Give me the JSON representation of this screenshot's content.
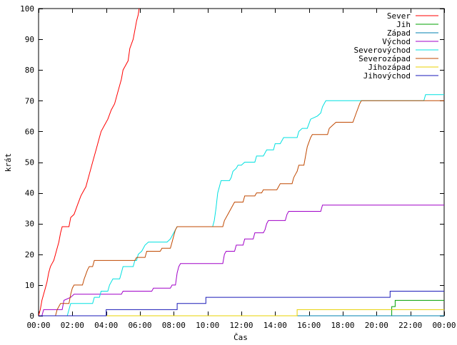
{
  "chart_data": {
    "type": "line",
    "title": "",
    "xlabel": "Čas",
    "ylabel": "krát",
    "ylim": [
      0,
      100
    ],
    "yticks": [
      0,
      10,
      20,
      30,
      40,
      50,
      60,
      70,
      80,
      90,
      100
    ],
    "xlim": [
      0,
      24
    ],
    "xtick_values": [
      0,
      2,
      4,
      6,
      8,
      10,
      12,
      14,
      16,
      18,
      20,
      22,
      24
    ],
    "xtick_labels": [
      "00:00",
      "02:00",
      "04:00",
      "06:00",
      "08:00",
      "10:00",
      "12:00",
      "14:00",
      "16:00",
      "18:00",
      "20:00",
      "22:00",
      "00:00"
    ],
    "grid": false,
    "legend_position": "top-right",
    "series": [
      {
        "name": "Sever",
        "color": "#ff0000",
        "points": [
          [
            0.0,
            0
          ],
          [
            0.1,
            2
          ],
          [
            0.2,
            5
          ],
          [
            0.3,
            7
          ],
          [
            0.4,
            9
          ],
          [
            0.5,
            11
          ],
          [
            0.6,
            14
          ],
          [
            0.7,
            16
          ],
          [
            0.8,
            17
          ],
          [
            0.9,
            18
          ],
          [
            1.0,
            20
          ],
          [
            1.1,
            22
          ],
          [
            1.2,
            24
          ],
          [
            1.3,
            27
          ],
          [
            1.4,
            29
          ],
          [
            1.8,
            29
          ],
          [
            1.9,
            32
          ],
          [
            2.1,
            33
          ],
          [
            2.3,
            36
          ],
          [
            2.5,
            39
          ],
          [
            2.6,
            40
          ],
          [
            2.8,
            42
          ],
          [
            3.0,
            46
          ],
          [
            3.2,
            50
          ],
          [
            3.4,
            54
          ],
          [
            3.6,
            58
          ],
          [
            3.7,
            60
          ],
          [
            3.9,
            62
          ],
          [
            4.1,
            64
          ],
          [
            4.3,
            67
          ],
          [
            4.5,
            69
          ],
          [
            4.7,
            73
          ],
          [
            4.9,
            77
          ],
          [
            5.0,
            80
          ],
          [
            5.1,
            81
          ],
          [
            5.3,
            83
          ],
          [
            5.4,
            87
          ],
          [
            5.6,
            90
          ],
          [
            5.7,
            93
          ],
          [
            5.8,
            96
          ],
          [
            5.9,
            98
          ],
          [
            5.95,
            100
          ]
        ]
      },
      {
        "name": "Jih",
        "color": "#00a000",
        "points": [
          [
            0.0,
            0
          ],
          [
            20.9,
            0
          ],
          [
            20.9,
            3
          ],
          [
            21.1,
            3
          ],
          [
            21.1,
            5
          ],
          [
            24.0,
            5
          ]
        ]
      },
      {
        "name": "Západ",
        "color": "#0080b0",
        "points": [
          [
            0.0,
            0
          ],
          [
            24.0,
            0
          ]
        ]
      },
      {
        "name": "Východ",
        "color": "#a000c8",
        "points": [
          [
            0.0,
            0
          ],
          [
            0.2,
            0
          ],
          [
            0.3,
            2
          ],
          [
            1.4,
            2
          ],
          [
            1.5,
            5
          ],
          [
            1.9,
            6
          ],
          [
            2.1,
            7
          ],
          [
            4.9,
            7
          ],
          [
            5.0,
            8
          ],
          [
            6.7,
            8
          ],
          [
            6.8,
            9
          ],
          [
            7.8,
            9
          ],
          [
            7.9,
            10
          ],
          [
            8.1,
            10
          ],
          [
            8.2,
            14
          ],
          [
            8.3,
            16
          ],
          [
            8.4,
            17
          ],
          [
            10.9,
            17
          ],
          [
            11.0,
            20
          ],
          [
            11.1,
            21
          ],
          [
            11.6,
            21
          ],
          [
            11.7,
            23
          ],
          [
            12.1,
            23
          ],
          [
            12.2,
            25
          ],
          [
            12.7,
            25
          ],
          [
            12.8,
            27
          ],
          [
            13.3,
            27
          ],
          [
            13.4,
            28
          ],
          [
            13.5,
            30
          ],
          [
            13.6,
            31
          ],
          [
            14.6,
            31
          ],
          [
            14.7,
            33
          ],
          [
            14.8,
            34
          ],
          [
            16.7,
            34
          ],
          [
            16.8,
            36
          ],
          [
            24.0,
            36
          ]
        ]
      },
      {
        "name": "Severovýchod",
        "color": "#00e0e0",
        "points": [
          [
            0.0,
            0
          ],
          [
            1.7,
            0
          ],
          [
            1.8,
            2
          ],
          [
            1.9,
            4
          ],
          [
            3.2,
            4
          ],
          [
            3.3,
            6
          ],
          [
            3.6,
            6
          ],
          [
            3.7,
            8
          ],
          [
            4.1,
            8
          ],
          [
            4.2,
            10
          ],
          [
            4.4,
            12
          ],
          [
            4.8,
            12
          ],
          [
            4.9,
            14
          ],
          [
            5.0,
            16
          ],
          [
            5.6,
            16
          ],
          [
            5.7,
            18
          ],
          [
            5.8,
            18
          ],
          [
            5.9,
            20
          ],
          [
            6.1,
            21
          ],
          [
            6.3,
            23
          ],
          [
            6.5,
            24
          ],
          [
            7.6,
            24
          ],
          [
            7.8,
            25
          ],
          [
            8.0,
            27
          ],
          [
            8.2,
            29
          ],
          [
            10.3,
            29
          ],
          [
            10.4,
            31
          ],
          [
            10.5,
            35
          ],
          [
            10.6,
            40
          ],
          [
            10.8,
            44
          ],
          [
            11.3,
            44
          ],
          [
            11.4,
            45
          ],
          [
            11.5,
            47
          ],
          [
            11.7,
            48
          ],
          [
            11.8,
            49
          ],
          [
            12.0,
            49
          ],
          [
            12.2,
            50
          ],
          [
            12.8,
            50
          ],
          [
            12.9,
            52
          ],
          [
            13.3,
            52
          ],
          [
            13.5,
            54
          ],
          [
            13.9,
            54
          ],
          [
            14.0,
            56
          ],
          [
            14.3,
            56
          ],
          [
            14.5,
            58
          ],
          [
            15.3,
            58
          ],
          [
            15.4,
            60
          ],
          [
            15.6,
            61
          ],
          [
            15.9,
            61
          ],
          [
            16.1,
            64
          ],
          [
            16.5,
            65
          ],
          [
            16.7,
            66
          ],
          [
            16.8,
            68
          ],
          [
            17.0,
            70
          ],
          [
            22.8,
            70
          ],
          [
            22.9,
            72
          ],
          [
            24.0,
            72
          ]
        ]
      },
      {
        "name": "Severozápad",
        "color": "#c04800",
        "points": [
          [
            0.0,
            0
          ],
          [
            1.0,
            0
          ],
          [
            1.1,
            2
          ],
          [
            1.3,
            4
          ],
          [
            1.8,
            4
          ],
          [
            1.9,
            7
          ],
          [
            2.0,
            9
          ],
          [
            2.1,
            10
          ],
          [
            2.6,
            10
          ],
          [
            2.7,
            12
          ],
          [
            2.9,
            15
          ],
          [
            3.0,
            16
          ],
          [
            3.2,
            16
          ],
          [
            3.3,
            18
          ],
          [
            5.7,
            18
          ],
          [
            5.8,
            19
          ],
          [
            6.3,
            19
          ],
          [
            6.4,
            21
          ],
          [
            7.2,
            21
          ],
          [
            7.3,
            22
          ],
          [
            7.8,
            22
          ],
          [
            7.9,
            24
          ],
          [
            8.0,
            26
          ],
          [
            8.1,
            28
          ],
          [
            8.2,
            29
          ],
          [
            10.9,
            29
          ],
          [
            11.0,
            31
          ],
          [
            11.2,
            33
          ],
          [
            11.4,
            35
          ],
          [
            11.6,
            37
          ],
          [
            12.1,
            37
          ],
          [
            12.2,
            39
          ],
          [
            12.8,
            39
          ],
          [
            12.9,
            40
          ],
          [
            13.2,
            40
          ],
          [
            13.3,
            41
          ],
          [
            14.1,
            41
          ],
          [
            14.2,
            42
          ],
          [
            14.3,
            43
          ],
          [
            15.0,
            43
          ],
          [
            15.1,
            45
          ],
          [
            15.2,
            46
          ],
          [
            15.3,
            47
          ],
          [
            15.4,
            49
          ],
          [
            15.7,
            49
          ],
          [
            15.8,
            52
          ],
          [
            15.9,
            55
          ],
          [
            16.1,
            58
          ],
          [
            16.2,
            59
          ],
          [
            17.1,
            59
          ],
          [
            17.2,
            61
          ],
          [
            17.4,
            62
          ],
          [
            17.6,
            63
          ],
          [
            18.6,
            63
          ],
          [
            18.8,
            66
          ],
          [
            19.0,
            69
          ],
          [
            19.1,
            70
          ],
          [
            24.0,
            70
          ]
        ]
      },
      {
        "name": "Jihozápad",
        "color": "#e8d000",
        "points": [
          [
            0.0,
            0
          ],
          [
            15.3,
            0
          ],
          [
            15.3,
            2
          ],
          [
            24.0,
            2
          ]
        ]
      },
      {
        "name": "Jihovýchod",
        "color": "#1a1ab8",
        "points": [
          [
            0.0,
            0
          ],
          [
            4.0,
            0
          ],
          [
            4.0,
            2
          ],
          [
            8.2,
            2
          ],
          [
            8.2,
            4
          ],
          [
            9.9,
            4
          ],
          [
            9.9,
            6
          ],
          [
            20.8,
            6
          ],
          [
            20.8,
            8
          ],
          [
            24.0,
            8
          ]
        ]
      }
    ]
  }
}
